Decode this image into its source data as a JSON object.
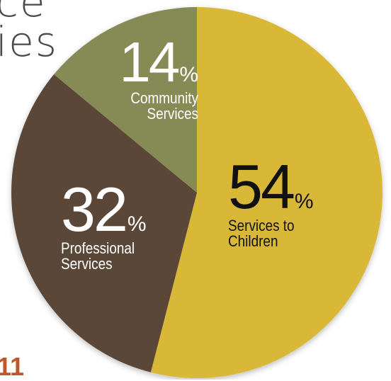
{
  "background_text": {
    "line1": "ce",
    "line2": "ies",
    "year": "11"
  },
  "chart_data": {
    "type": "pie",
    "title": "",
    "slices": [
      {
        "label": "Services to Children",
        "value": 54,
        "display": "54",
        "color": "#d9b838",
        "text_color": "#111111"
      },
      {
        "label": "Professional Services",
        "value": 32,
        "display": "32",
        "color": "#5a4637",
        "text_color": "#ffffff"
      },
      {
        "label": "Community Services",
        "value": 14,
        "display": "14",
        "color": "#868b56",
        "text_color": "#ffffff"
      }
    ],
    "unit": "%",
    "labels": {
      "children": {
        "l1": "Services to",
        "l2": "Children"
      },
      "prof": {
        "l1": "Professional",
        "l2": "Services"
      },
      "comm": {
        "l1": "Community",
        "l2": "Services"
      }
    }
  }
}
